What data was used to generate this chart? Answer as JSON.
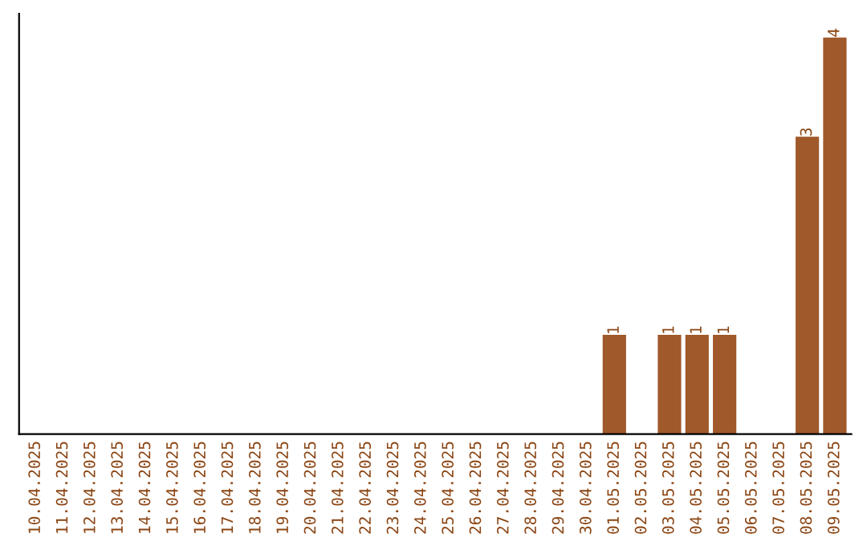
{
  "chart_data": {
    "type": "bar",
    "categories": [
      "10.04.2025",
      "11.04.2025",
      "12.04.2025",
      "13.04.2025",
      "14.04.2025",
      "15.04.2025",
      "16.04.2025",
      "17.04.2025",
      "18.04.2025",
      "19.04.2025",
      "20.04.2025",
      "21.04.2025",
      "22.04.2025",
      "23.04.2025",
      "24.04.2025",
      "25.04.2025",
      "26.04.2025",
      "27.04.2025",
      "28.04.2025",
      "29.04.2025",
      "30.04.2025",
      "01.05.2025",
      "02.05.2025",
      "03.05.2025",
      "04.05.2025",
      "05.05.2025",
      "06.05.2025",
      "07.05.2025",
      "08.05.2025",
      "09.05.2025"
    ],
    "values": [
      null,
      null,
      null,
      null,
      null,
      null,
      null,
      null,
      null,
      null,
      null,
      null,
      null,
      null,
      null,
      null,
      null,
      null,
      null,
      null,
      null,
      1,
      null,
      1,
      1,
      1,
      null,
      null,
      3,
      4
    ],
    "value_labels": [
      null,
      null,
      null,
      null,
      null,
      null,
      null,
      null,
      null,
      null,
      null,
      null,
      null,
      null,
      null,
      null,
      null,
      null,
      null,
      null,
      null,
      "1",
      null,
      "1",
      "1",
      "1",
      null,
      null,
      "3",
      "4"
    ],
    "color": "#a0592a",
    "tick_labels": "x",
    "grid": false,
    "legend": false
  }
}
